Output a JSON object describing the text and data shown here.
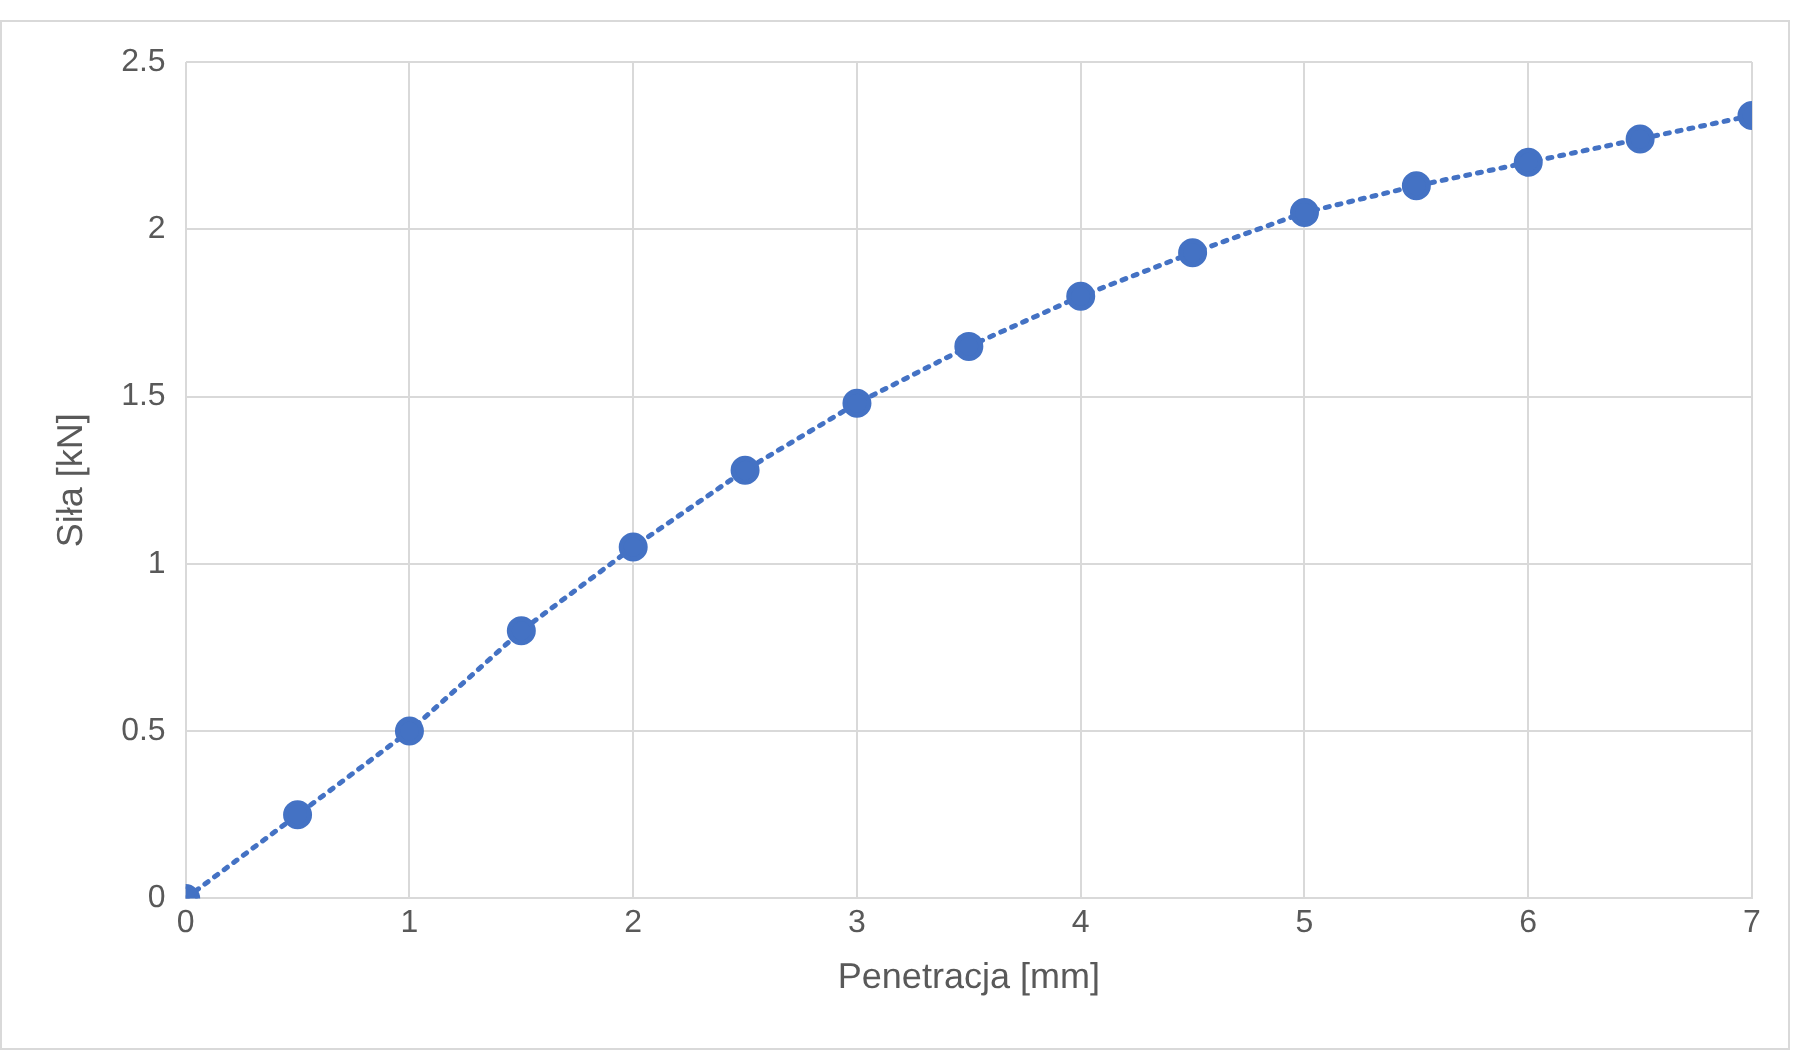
{
  "chart_data": {
    "type": "line",
    "xlabel": "Penetracja [mm]",
    "ylabel": "Siła [kN]",
    "x": [
      0,
      0.5,
      1,
      1.5,
      2,
      2.5,
      3,
      3.5,
      4,
      4.5,
      5,
      5.5,
      6,
      6.5,
      7
    ],
    "series": [
      {
        "color": "#4472c4",
        "values": [
          0,
          0.25,
          0.5,
          0.8,
          1.05,
          1.28,
          1.48,
          1.65,
          1.8,
          1.93,
          2.05,
          2.13,
          2.2,
          2.27,
          2.34
        ]
      }
    ],
    "xlim": [
      0,
      7
    ],
    "xticks": [
      0,
      1,
      2,
      3,
      4,
      5,
      6,
      7
    ],
    "ylim": [
      0,
      2.5
    ],
    "yticks": [
      0,
      0.5,
      1,
      1.5,
      2,
      2.5
    ],
    "grid": true,
    "legend": false,
    "marker": "circle",
    "line_style": "dotted"
  }
}
